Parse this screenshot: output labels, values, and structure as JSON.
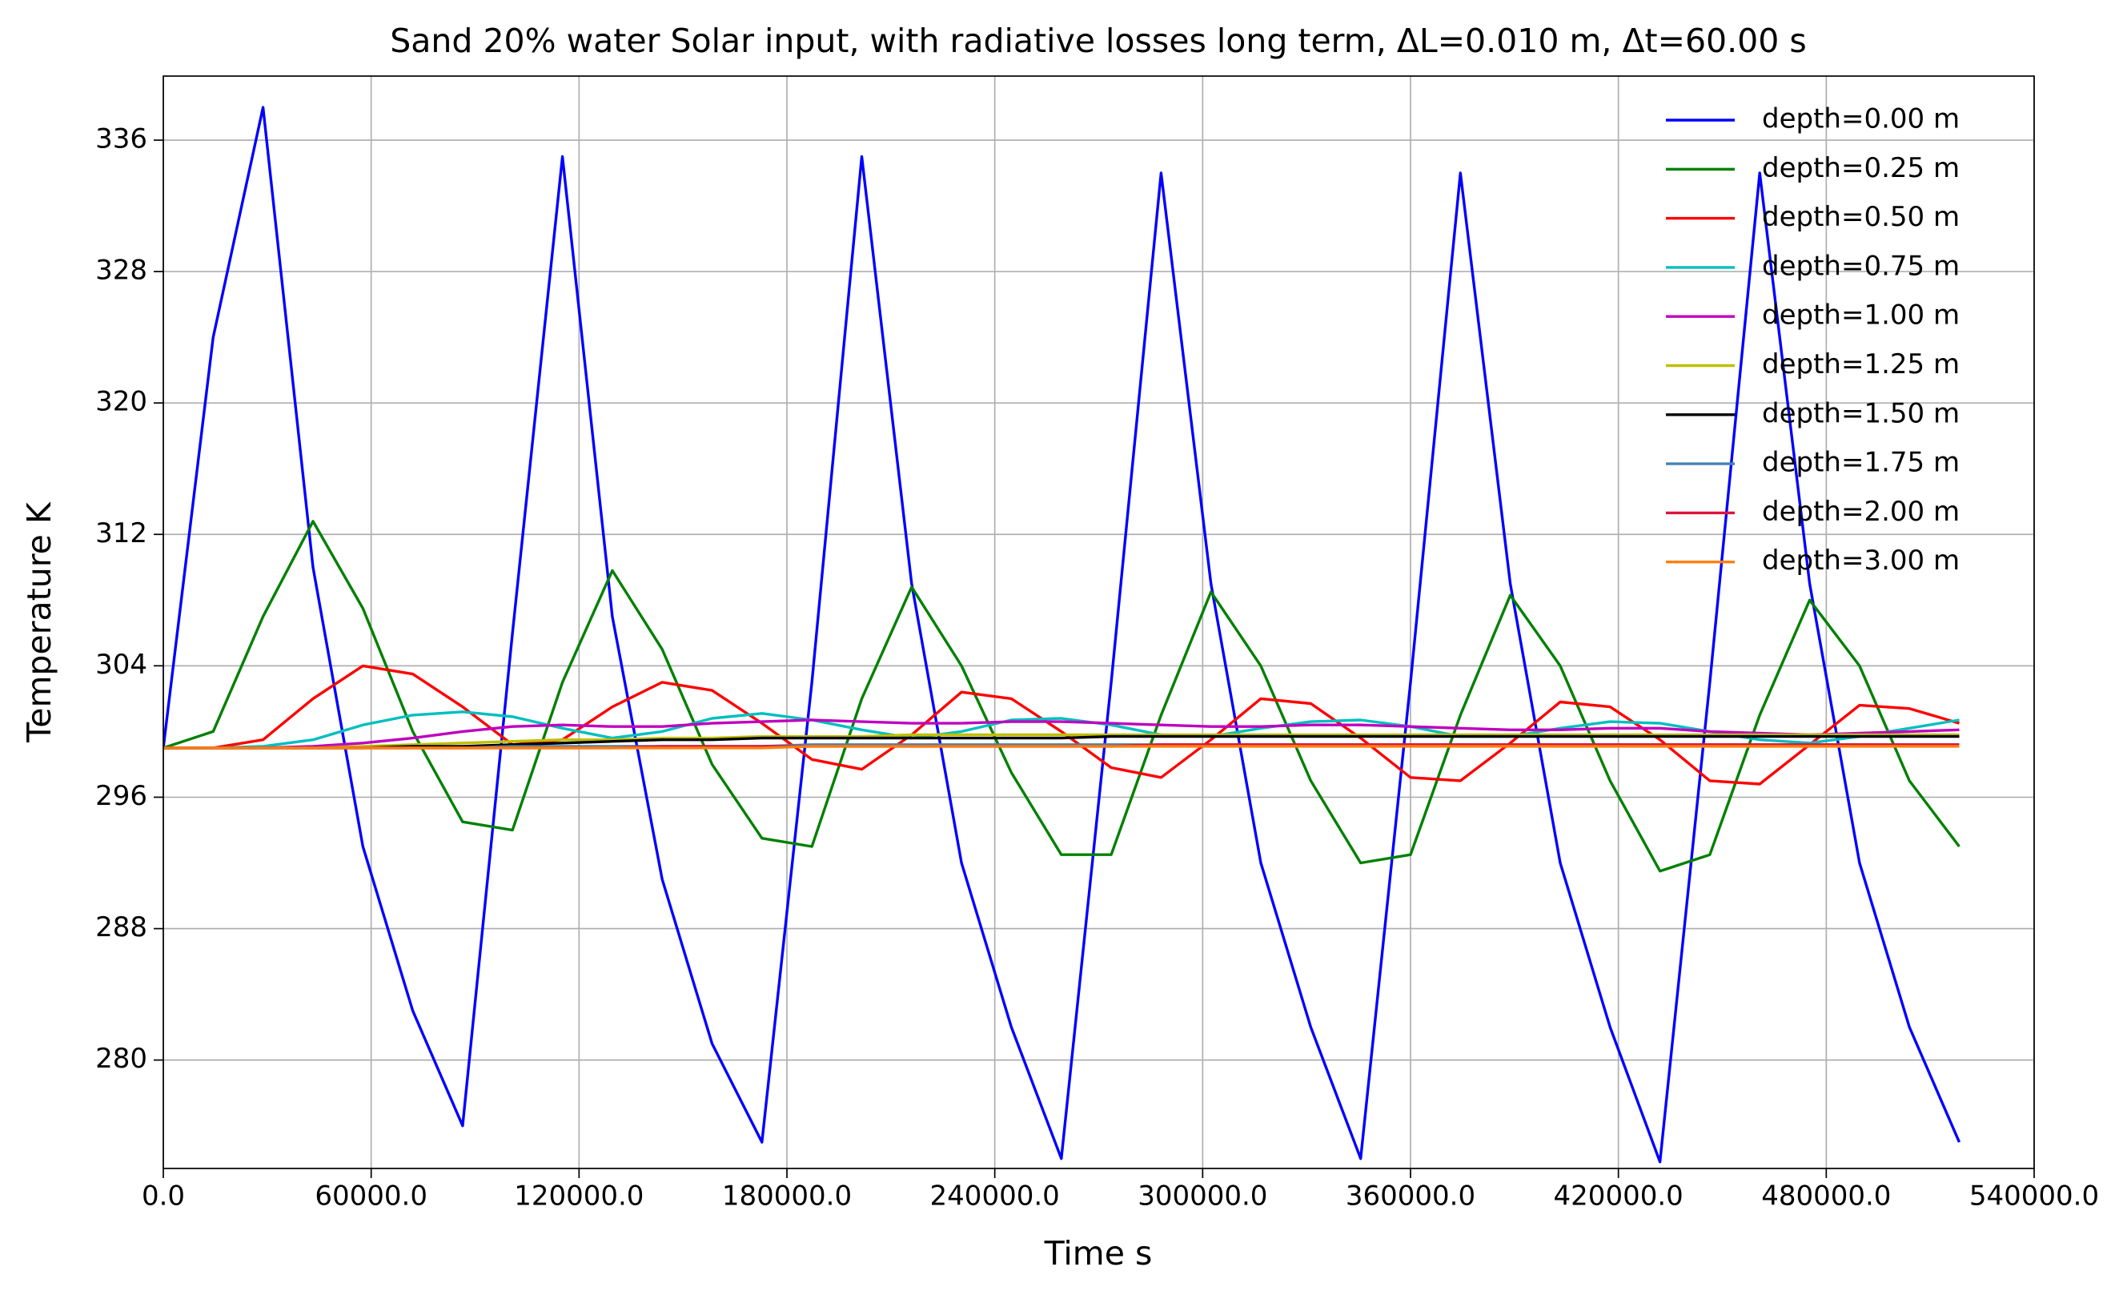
{
  "chart_data": {
    "type": "line",
    "title": "Sand 20% water Solar input, with radiative losses long term,  ΔL=0.010 m, Δt=60.00 s",
    "xlabel": "Time s",
    "ylabel": "Temperature K",
    "x": [
      0,
      14400,
      28800,
      43200,
      57600,
      72000,
      86400,
      100800,
      115200,
      129600,
      144000,
      158400,
      172800,
      187200,
      201600,
      216000,
      230400,
      244800,
      259200,
      273600,
      288000,
      302400,
      316800,
      331200,
      345600,
      360000,
      374400,
      388800,
      403200,
      417600,
      432000,
      446400,
      460800,
      475200,
      489600,
      504000,
      518400
    ],
    "series": [
      {
        "name": "depth=0.00 m",
        "color": "#0000ff",
        "values": [
          299,
          324,
          338,
          310,
          293,
          283,
          276,
          306,
          335,
          307,
          291,
          281,
          275,
          303,
          335,
          309,
          292,
          282,
          274,
          303,
          334,
          309,
          292,
          282,
          274,
          303,
          334,
          309,
          292,
          282,
          273.8,
          303,
          334,
          309,
          292,
          282,
          275
        ]
      },
      {
        "name": "depth=0.25 m",
        "color": "#008000",
        "values": [
          299,
          300,
          307,
          312.8,
          307.5,
          300,
          294.5,
          294,
          303,
          309.8,
          305,
          298,
          293.5,
          293,
          302,
          308.8,
          304,
          297.5,
          292.5,
          292.5,
          301,
          308.5,
          304,
          297,
          292,
          292.5,
          301,
          308.3,
          304,
          297,
          291.5,
          292.5,
          301,
          308,
          304,
          297,
          293
        ]
      },
      {
        "name": "depth=0.50 m",
        "color": "#ff0000",
        "values": [
          299,
          299,
          299.5,
          302,
          304,
          303.5,
          301.5,
          299.2,
          299.5,
          301.5,
          303,
          302.5,
          300.5,
          298.3,
          297.7,
          299.8,
          302.4,
          302,
          300,
          297.8,
          297.2,
          299.5,
          302,
          301.7,
          299.6,
          297.2,
          297,
          299.3,
          301.8,
          301.5,
          299.5,
          297,
          296.8,
          299.2,
          301.6,
          301.4,
          300.5
        ]
      },
      {
        "name": "depth=0.75 m",
        "color": "#00bfbf",
        "values": [
          299,
          299,
          299.1,
          299.5,
          300.4,
          301,
          301.2,
          300.9,
          300.2,
          299.6,
          300,
          300.8,
          301.1,
          300.7,
          300.1,
          299.6,
          300,
          300.7,
          300.8,
          300.4,
          299.8,
          299.7,
          300.2,
          300.6,
          300.7,
          300.3,
          299.7,
          299.7,
          300.2,
          300.6,
          300.5,
          300,
          299.5,
          299.3,
          299.7,
          300.2,
          300.7
        ]
      },
      {
        "name": "depth=1.00 m",
        "color": "#bf00bf",
        "values": [
          299,
          299,
          299,
          299.1,
          299.3,
          299.6,
          300,
          300.3,
          300.4,
          300.3,
          300.3,
          300.5,
          300.6,
          300.7,
          300.6,
          300.5,
          300.5,
          300.6,
          300.6,
          300.5,
          300.4,
          300.3,
          300.3,
          300.4,
          300.4,
          300.3,
          300.2,
          300.1,
          300.1,
          300.2,
          300.2,
          300,
          299.9,
          299.8,
          299.9,
          300,
          300.1
        ]
      },
      {
        "name": "depth=1.25 m",
        "color": "#bfbf00",
        "values": [
          299,
          299,
          299,
          299,
          299.1,
          299.2,
          299.3,
          299.4,
          299.5,
          299.5,
          299.6,
          299.6,
          299.7,
          299.7,
          299.7,
          299.8,
          299.8,
          299.8,
          299.8,
          299.8,
          299.8,
          299.8,
          299.8,
          299.8,
          299.8,
          299.8,
          299.8,
          299.8,
          299.8,
          299.8,
          299.8,
          299.8,
          299.8,
          299.8,
          299.8,
          299.8,
          299.8
        ]
      },
      {
        "name": "depth=1.50 m",
        "color": "#000000",
        "values": [
          299,
          299,
          299,
          299,
          299,
          299.1,
          299.1,
          299.2,
          299.3,
          299.4,
          299.5,
          299.5,
          299.6,
          299.6,
          299.6,
          299.6,
          299.6,
          299.6,
          299.6,
          299.7,
          299.7,
          299.7,
          299.7,
          299.7,
          299.7,
          299.7,
          299.7,
          299.7,
          299.7,
          299.7,
          299.7,
          299.7,
          299.7,
          299.7,
          299.7,
          299.7,
          299.7
        ]
      },
      {
        "name": "depth=1.75 m",
        "color": "#4682b4",
        "values": [
          299,
          299,
          299,
          299,
          299,
          299,
          299,
          299.1,
          299.1,
          299.1,
          299.1,
          299.1,
          299.1,
          299.2,
          299.2,
          299.2,
          299.2,
          299.2,
          299.2,
          299.2,
          299.2,
          299.2,
          299.2,
          299.2,
          299.2,
          299.2,
          299.2,
          299.2,
          299.2,
          299.2,
          299.2,
          299.2,
          299.2,
          299.2,
          299.2,
          299.2,
          299.2
        ]
      },
      {
        "name": "depth=2.00 m",
        "color": "#dc143c",
        "values": [
          299,
          299,
          299,
          299,
          299,
          299,
          299,
          299,
          299,
          299,
          299.1,
          299.1,
          299.1,
          299.1,
          299.1,
          299.1,
          299.1,
          299.1,
          299.1,
          299.1,
          299.2,
          299.2,
          299.2,
          299.2,
          299.2,
          299.2,
          299.2,
          299.2,
          299.2,
          299.2,
          299.2,
          299.2,
          299.2,
          299.2,
          299.2,
          299.2,
          299.2
        ]
      },
      {
        "name": "depth=3.00 m",
        "color": "#ff7f0e",
        "values": [
          299,
          299,
          299,
          299,
          299,
          299,
          299,
          299,
          299,
          299,
          299,
          299,
          299,
          299.1,
          299.1,
          299.1,
          299.1,
          299.1,
          299.1,
          299.1,
          299.1,
          299.1,
          299.1,
          299.1,
          299.1,
          299.1,
          299.1,
          299.1,
          299.1,
          299.1,
          299.1,
          299.1,
          299.1,
          299.1,
          299.1,
          299.1,
          299.1
        ]
      }
    ],
    "xlim": [
      0,
      540000
    ],
    "xticks": [
      {
        "value": 0,
        "label": "0.0"
      },
      {
        "value": 60000,
        "label": "60000.0"
      },
      {
        "value": 120000,
        "label": "120000.0"
      },
      {
        "value": 180000,
        "label": "180000.0"
      },
      {
        "value": 240000,
        "label": "240000.0"
      },
      {
        "value": 300000,
        "label": "300000.0"
      },
      {
        "value": 360000,
        "label": "360000.0"
      },
      {
        "value": 420000,
        "label": "420000.0"
      },
      {
        "value": 480000,
        "label": "480000.0"
      },
      {
        "value": 540000,
        "label": "540000.0"
      }
    ],
    "ylim": [
      273.4,
      339.9
    ],
    "yticks": [
      280,
      288,
      296,
      304,
      312,
      320,
      328,
      336
    ],
    "grid": true,
    "legend": "upper right"
  }
}
